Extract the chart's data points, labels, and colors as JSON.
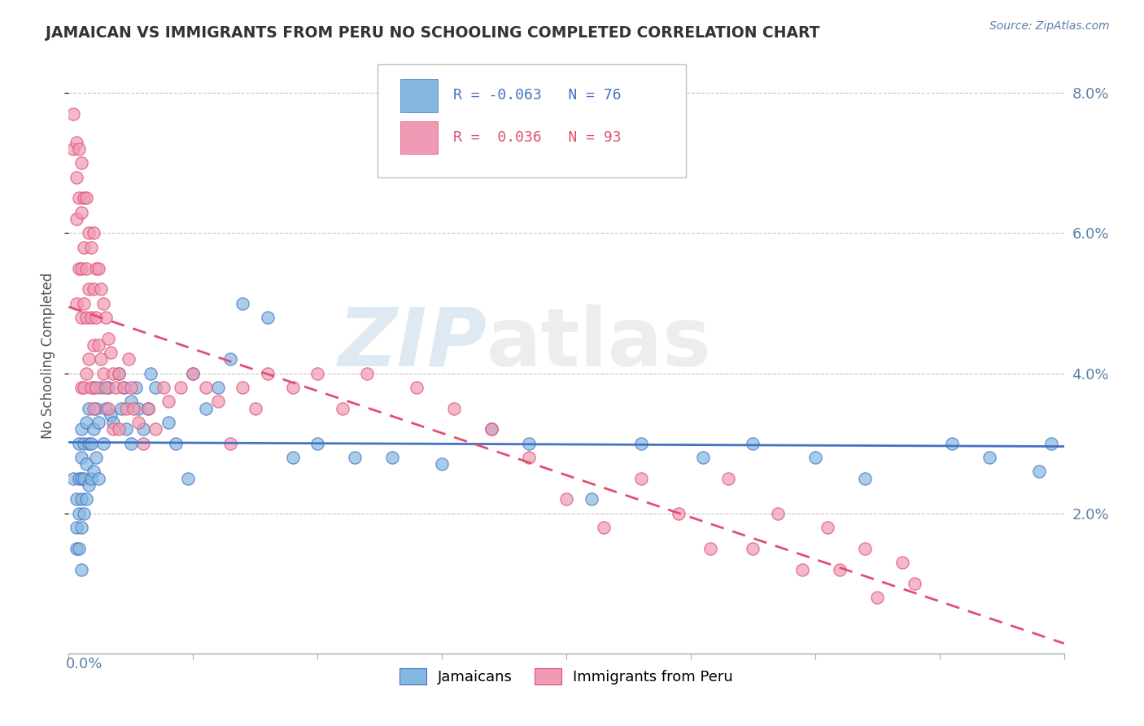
{
  "title": "JAMAICAN VS IMMIGRANTS FROM PERU NO SCHOOLING COMPLETED CORRELATION CHART",
  "source_text": "Source: ZipAtlas.com",
  "blue_color": "#85b8e0",
  "pink_color": "#f09ab5",
  "blue_line_color": "#4472c4",
  "pink_line_color": "#e05070",
  "watermark_zip": "ZIP",
  "watermark_atlas": "atlas",
  "blue_R": -0.063,
  "pink_R": 0.036,
  "blue_N": 76,
  "pink_N": 93,
  "xmin": 0.0,
  "xmax": 0.4,
  "ymin": 0.0,
  "ymax": 0.085,
  "ytick_vals": [
    0.02,
    0.04,
    0.06,
    0.08
  ],
  "ytick_labels": [
    "2.0%",
    "4.0%",
    "6.0%",
    "8.0%"
  ],
  "legend_r1": "R = -0.063   N = 76",
  "legend_r2": "R =  0.036   N = 93",
  "legend_r1_color": "#4472c4",
  "legend_r2_color": "#e05070",
  "bottom_label1": "Jamaicans",
  "bottom_label2": "Immigrants from Peru",
  "blue_x": [
    0.002,
    0.003,
    0.003,
    0.003,
    0.004,
    0.004,
    0.004,
    0.004,
    0.005,
    0.005,
    0.005,
    0.005,
    0.005,
    0.005,
    0.006,
    0.006,
    0.006,
    0.007,
    0.007,
    0.007,
    0.008,
    0.008,
    0.008,
    0.009,
    0.009,
    0.01,
    0.01,
    0.01,
    0.011,
    0.011,
    0.012,
    0.012,
    0.013,
    0.014,
    0.015,
    0.016,
    0.017,
    0.018,
    0.02,
    0.021,
    0.022,
    0.023,
    0.025,
    0.025,
    0.027,
    0.028,
    0.03,
    0.032,
    0.033,
    0.035,
    0.04,
    0.043,
    0.048,
    0.05,
    0.055,
    0.06,
    0.065,
    0.07,
    0.08,
    0.09,
    0.1,
    0.115,
    0.13,
    0.15,
    0.17,
    0.185,
    0.21,
    0.23,
    0.255,
    0.275,
    0.3,
    0.32,
    0.355,
    0.37,
    0.39,
    0.395
  ],
  "blue_y": [
    0.025,
    0.022,
    0.018,
    0.015,
    0.03,
    0.025,
    0.02,
    0.015,
    0.032,
    0.028,
    0.025,
    0.022,
    0.018,
    0.012,
    0.03,
    0.025,
    0.02,
    0.033,
    0.027,
    0.022,
    0.035,
    0.03,
    0.024,
    0.03,
    0.025,
    0.038,
    0.032,
    0.026,
    0.035,
    0.028,
    0.033,
    0.025,
    0.038,
    0.03,
    0.035,
    0.038,
    0.034,
    0.033,
    0.04,
    0.035,
    0.038,
    0.032,
    0.036,
    0.03,
    0.038,
    0.035,
    0.032,
    0.035,
    0.04,
    0.038,
    0.033,
    0.03,
    0.025,
    0.04,
    0.035,
    0.038,
    0.042,
    0.05,
    0.048,
    0.028,
    0.03,
    0.028,
    0.028,
    0.027,
    0.032,
    0.03,
    0.022,
    0.03,
    0.028,
    0.03,
    0.028,
    0.025,
    0.03,
    0.028,
    0.026,
    0.03
  ],
  "pink_x": [
    0.002,
    0.002,
    0.003,
    0.003,
    0.003,
    0.003,
    0.004,
    0.004,
    0.004,
    0.005,
    0.005,
    0.005,
    0.005,
    0.005,
    0.006,
    0.006,
    0.006,
    0.006,
    0.007,
    0.007,
    0.007,
    0.007,
    0.008,
    0.008,
    0.008,
    0.009,
    0.009,
    0.009,
    0.01,
    0.01,
    0.01,
    0.01,
    0.011,
    0.011,
    0.011,
    0.012,
    0.012,
    0.013,
    0.013,
    0.014,
    0.014,
    0.015,
    0.015,
    0.016,
    0.016,
    0.017,
    0.018,
    0.018,
    0.019,
    0.02,
    0.02,
    0.022,
    0.023,
    0.024,
    0.025,
    0.026,
    0.028,
    0.03,
    0.032,
    0.035,
    0.038,
    0.04,
    0.045,
    0.05,
    0.055,
    0.06,
    0.065,
    0.07,
    0.075,
    0.08,
    0.09,
    0.1,
    0.11,
    0.12,
    0.14,
    0.155,
    0.17,
    0.185,
    0.2,
    0.215,
    0.23,
    0.245,
    0.258,
    0.265,
    0.275,
    0.285,
    0.295,
    0.305,
    0.31,
    0.32,
    0.325,
    0.335,
    0.34
  ],
  "pink_y": [
    0.077,
    0.072,
    0.073,
    0.068,
    0.062,
    0.05,
    0.072,
    0.065,
    0.055,
    0.07,
    0.063,
    0.055,
    0.048,
    0.038,
    0.065,
    0.058,
    0.05,
    0.038,
    0.065,
    0.055,
    0.048,
    0.04,
    0.06,
    0.052,
    0.042,
    0.058,
    0.048,
    0.038,
    0.06,
    0.052,
    0.044,
    0.035,
    0.055,
    0.048,
    0.038,
    0.055,
    0.044,
    0.052,
    0.042,
    0.05,
    0.04,
    0.048,
    0.038,
    0.045,
    0.035,
    0.043,
    0.04,
    0.032,
    0.038,
    0.04,
    0.032,
    0.038,
    0.035,
    0.042,
    0.038,
    0.035,
    0.033,
    0.03,
    0.035,
    0.032,
    0.038,
    0.036,
    0.038,
    0.04,
    0.038,
    0.036,
    0.03,
    0.038,
    0.035,
    0.04,
    0.038,
    0.04,
    0.035,
    0.04,
    0.038,
    0.035,
    0.032,
    0.028,
    0.022,
    0.018,
    0.025,
    0.02,
    0.015,
    0.025,
    0.015,
    0.02,
    0.012,
    0.018,
    0.012,
    0.015,
    0.008,
    0.013,
    0.01
  ]
}
